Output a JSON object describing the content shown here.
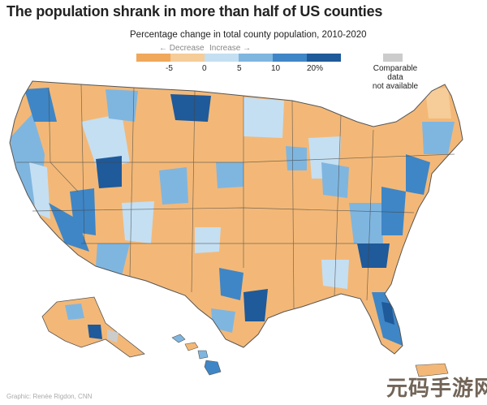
{
  "title": "The population shrank in more than half of US counties",
  "legend": {
    "title": "Percentage change in total county population, 2010-2020",
    "decrease_label": "Decrease",
    "increase_label": "Increase",
    "ticks": [
      "-5",
      "0",
      "5",
      "10",
      "20%"
    ],
    "colors": {
      "decrease_strong": "#f0a85a",
      "decrease_light": "#f6cc98",
      "increase_1": "#c4dff2",
      "increase_2": "#7fb6e0",
      "increase_3": "#3f86c6",
      "increase_4": "#1f5a9a",
      "not_available": "#cccccc"
    },
    "na_label_line1": "Comparable data",
    "na_label_line2": "not available"
  },
  "credit": "Graphic: Renée Rigdon, CNN",
  "watermark": "元码手游网"
}
